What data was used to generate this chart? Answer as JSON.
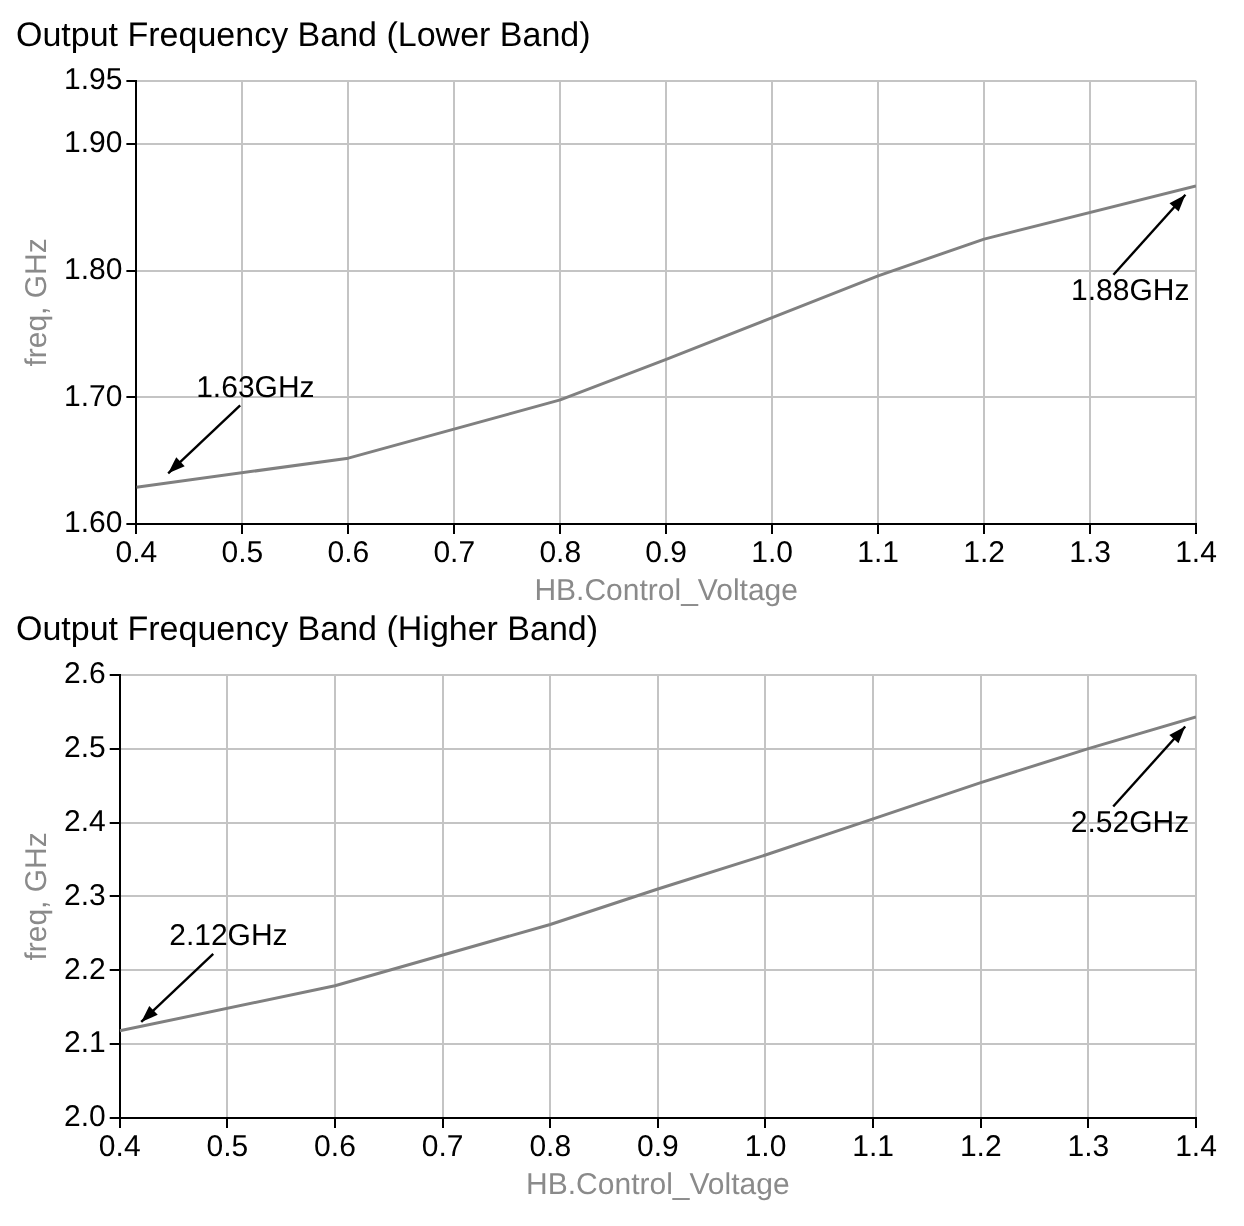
{
  "chart_data": [
    {
      "type": "line",
      "title": "Output Frequency Band (Lower Band)",
      "xlabel": "HB.Control_Voltage",
      "ylabel": "freq, GHz",
      "series": [
        {
          "color": "#808080",
          "x": [
            0.4,
            0.6,
            0.8,
            0.9,
            1.0,
            1.1,
            1.2,
            1.4
          ],
          "values": [
            1.629,
            1.652,
            1.698,
            1.73,
            1.763,
            1.796,
            1.825,
            1.867
          ]
        }
      ],
      "xlim": [
        0.4,
        1.4
      ],
      "xticks": [
        0.4,
        0.5,
        0.6,
        0.7,
        0.8,
        0.9,
        {
          "value": 1,
          "label": "1.0"
        },
        1.1,
        1.2,
        1.3,
        1.4
      ],
      "ylim": [
        1.6,
        1.95
      ],
      "yticks": [
        {
          "value": 1.6,
          "label": "1.60"
        },
        {
          "value": 1.7,
          "label": "1.70"
        },
        {
          "value": 1.8,
          "label": "1.80"
        },
        {
          "value": 1.9,
          "label": "1.90"
        },
        1.95
      ],
      "grid": true,
      "legend": false,
      "annotations": [
        {
          "text": "1.63GHz",
          "x": 0.43,
          "y": 1.64
        },
        {
          "text": "1.88GHz",
          "x": 1.39,
          "y": 1.86
        }
      ]
    },
    {
      "type": "line",
      "title": "Output Frequency Band (Higher Band)",
      "xlabel": "HB.Control_Voltage",
      "ylabel": "freq, GHz",
      "series": [
        {
          "color": "#808080",
          "x": [
            0.4,
            0.6,
            0.8,
            0.9,
            1.0,
            1.1,
            1.2,
            1.3,
            1.4
          ],
          "values": [
            2.118,
            2.179,
            2.262,
            2.31,
            2.356,
            2.405,
            2.454,
            2.5,
            2.543
          ]
        }
      ],
      "xlim": [
        0.4,
        1.4
      ],
      "xticks": [
        0.4,
        0.5,
        0.6,
        0.7,
        0.8,
        0.9,
        {
          "value": 1,
          "label": "1.0"
        },
        1.1,
        1.2,
        1.3,
        1.4
      ],
      "ylim": [
        2.0,
        2.6
      ],
      "yticks": [
        {
          "value": 2,
          "label": "2.0"
        },
        2.1,
        2.2,
        2.3,
        2.4,
        2.5,
        2.6
      ],
      "grid": true,
      "legend": false,
      "annotations": [
        {
          "text": "2.12GHz",
          "x": 0.42,
          "y": 2.13
        },
        {
          "text": "2.52GHz",
          "x": 1.39,
          "y": 2.53
        }
      ]
    }
  ]
}
